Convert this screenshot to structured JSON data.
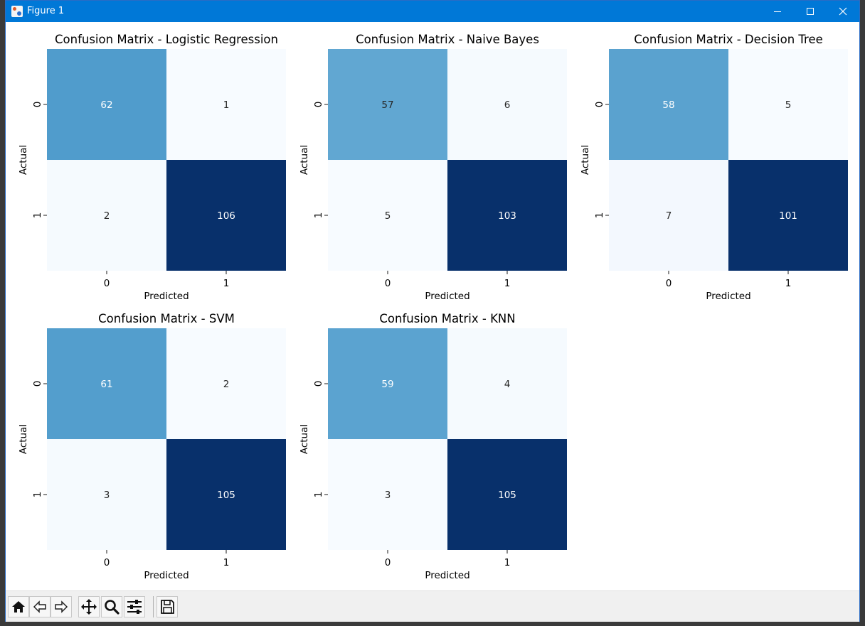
{
  "window": {
    "title": "Figure 1"
  },
  "toolbar": {
    "tools": [
      {
        "name": "home-icon"
      },
      {
        "name": "back-icon"
      },
      {
        "name": "forward-icon"
      },
      {
        "name": "pan-icon"
      },
      {
        "name": "zoom-icon"
      },
      {
        "name": "configure-subplots-icon"
      },
      {
        "name": "save-icon"
      }
    ]
  },
  "colors": {
    "low": "#f7fbff",
    "high": "#08306b",
    "titlebar": "#0078d7"
  },
  "chart_data": [
    {
      "type": "heatmap",
      "title": "Confusion Matrix - Logistic Regression",
      "xlabel": "Predicted",
      "ylabel": "Actual",
      "x_categories": [
        "0",
        "1"
      ],
      "y_categories": [
        "0",
        "1"
      ],
      "values": [
        [
          62,
          1
        ],
        [
          2,
          106
        ]
      ],
      "colormap": "Blues",
      "colorbar": false
    },
    {
      "type": "heatmap",
      "title": "Confusion Matrix - Naive Bayes",
      "xlabel": "Predicted",
      "ylabel": "Actual",
      "x_categories": [
        "0",
        "1"
      ],
      "y_categories": [
        "0",
        "1"
      ],
      "values": [
        [
          57,
          6
        ],
        [
          5,
          103
        ]
      ],
      "colormap": "Blues",
      "colorbar": false
    },
    {
      "type": "heatmap",
      "title": "Confusion Matrix - Decision Tree",
      "xlabel": "Predicted",
      "ylabel": "Actual",
      "x_categories": [
        "0",
        "1"
      ],
      "y_categories": [
        "0",
        "1"
      ],
      "values": [
        [
          58,
          5
        ],
        [
          7,
          101
        ]
      ],
      "colormap": "Blues",
      "colorbar": false
    },
    {
      "type": "heatmap",
      "title": "Confusion Matrix - SVM",
      "xlabel": "Predicted",
      "ylabel": "Actual",
      "x_categories": [
        "0",
        "1"
      ],
      "y_categories": [
        "0",
        "1"
      ],
      "values": [
        [
          61,
          2
        ],
        [
          3,
          105
        ]
      ],
      "colormap": "Blues",
      "colorbar": false
    },
    {
      "type": "heatmap",
      "title": "Confusion Matrix - KNN",
      "xlabel": "Predicted",
      "ylabel": "Actual",
      "x_categories": [
        "0",
        "1"
      ],
      "y_categories": [
        "0",
        "1"
      ],
      "values": [
        [
          59,
          4
        ],
        [
          3,
          105
        ]
      ],
      "colormap": "Blues",
      "colorbar": false
    }
  ]
}
